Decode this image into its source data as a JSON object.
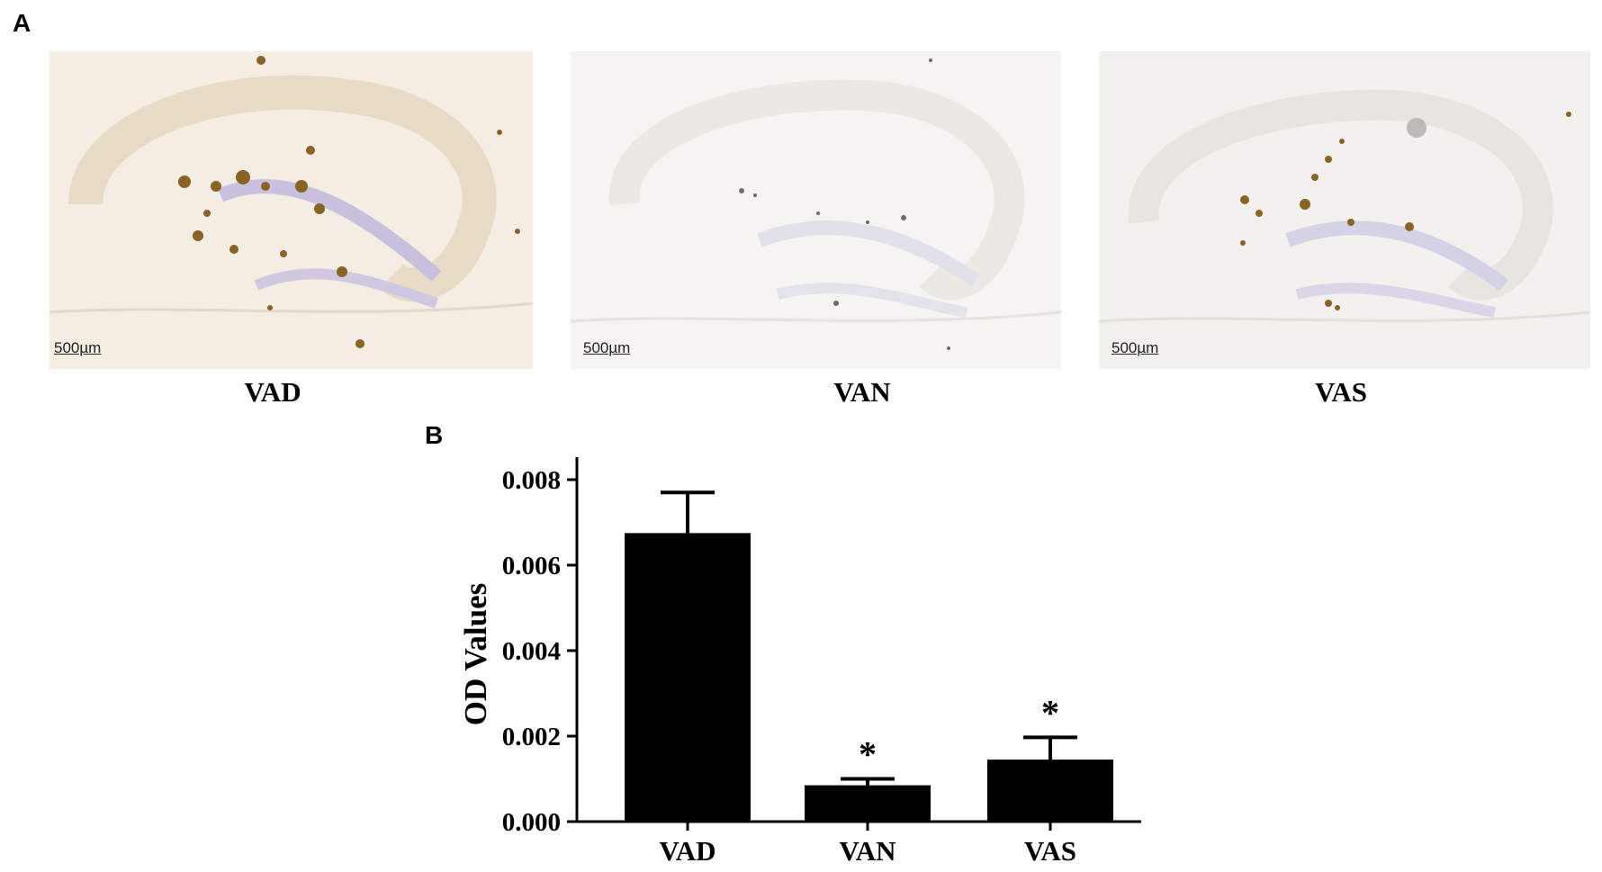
{
  "panel_a": {
    "letter": "A",
    "images": [
      {
        "group": "VAD",
        "scale_bar": "500µm"
      },
      {
        "group": "VAN",
        "scale_bar": "500µm"
      },
      {
        "group": "VAS",
        "scale_bar": "500µm"
      }
    ]
  },
  "panel_b": {
    "letter": "B"
  },
  "chart_data": {
    "type": "bar",
    "title": "",
    "xlabel": "",
    "ylabel": "OD  Values",
    "categories": [
      "VAD",
      "VAN",
      "VAS"
    ],
    "values": [
      0.00675,
      0.00085,
      0.00145
    ],
    "error_upper": [
      0.0077,
      0.001,
      0.00197
    ],
    "significance": [
      "",
      "*",
      "*"
    ],
    "ylim": [
      0,
      0.008
    ],
    "yticks": [
      0.0,
      0.002,
      0.004,
      0.006,
      0.008
    ],
    "ytick_labels": [
      "0.000",
      "0.002",
      "0.004",
      "0.006",
      "0.008"
    ],
    "bar_color": "#000000",
    "grid": false
  },
  "colors": {
    "tissue_bg": "#f4efe6",
    "stain_brown": "#8a6324",
    "nuclear_blue": "#c9c3dc"
  }
}
